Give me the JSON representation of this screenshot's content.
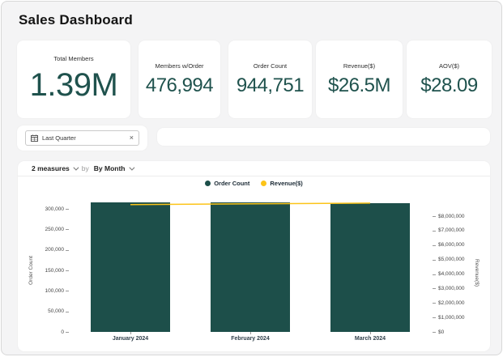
{
  "page": {
    "title": "Sales Dashboard"
  },
  "kpis": [
    {
      "label": "Total Members",
      "value": "1.39M"
    },
    {
      "label": "Members w/Order",
      "value": "476,994"
    },
    {
      "label": "Order Count",
      "value": "944,751"
    },
    {
      "label": "Revenue($)",
      "value": "$26.5M"
    },
    {
      "label": "AOV($)",
      "value": "$28.09"
    }
  ],
  "filter": {
    "chip_label": "Last Quarter",
    "chip_icon": "calendar-icon",
    "close_glyph": "×"
  },
  "chart_controls": {
    "measures_label": "2 measures",
    "by_label": "by",
    "group_label": "By Month"
  },
  "colors": {
    "accent_teal": "#1f524d",
    "bar": "#1d4f4a",
    "line": "#fcc419",
    "background": "#f4f4f5",
    "card": "#ffffff"
  },
  "chart_data": {
    "type": "bar",
    "title": "",
    "categories": [
      "January 2024",
      "February 2024",
      "March 2024"
    ],
    "series": [
      {
        "name": "Order Count",
        "type": "bar",
        "axis": "left",
        "color": "#1d4f4a",
        "values": [
          316000,
          315000,
          314000
        ]
      },
      {
        "name": "Revenue($)",
        "type": "line",
        "axis": "right",
        "color": "#fcc419",
        "values": [
          8800000,
          8850000,
          8900000
        ]
      }
    ],
    "left_axis": {
      "label": "Order Count",
      "min": 0,
      "max": 300000,
      "step": 50000,
      "format": "number"
    },
    "right_axis": {
      "label": "Revenue($)",
      "min": 0,
      "max": 8000000,
      "step": 1000000,
      "format": "currency"
    },
    "legend_position": "top",
    "grid": false
  }
}
